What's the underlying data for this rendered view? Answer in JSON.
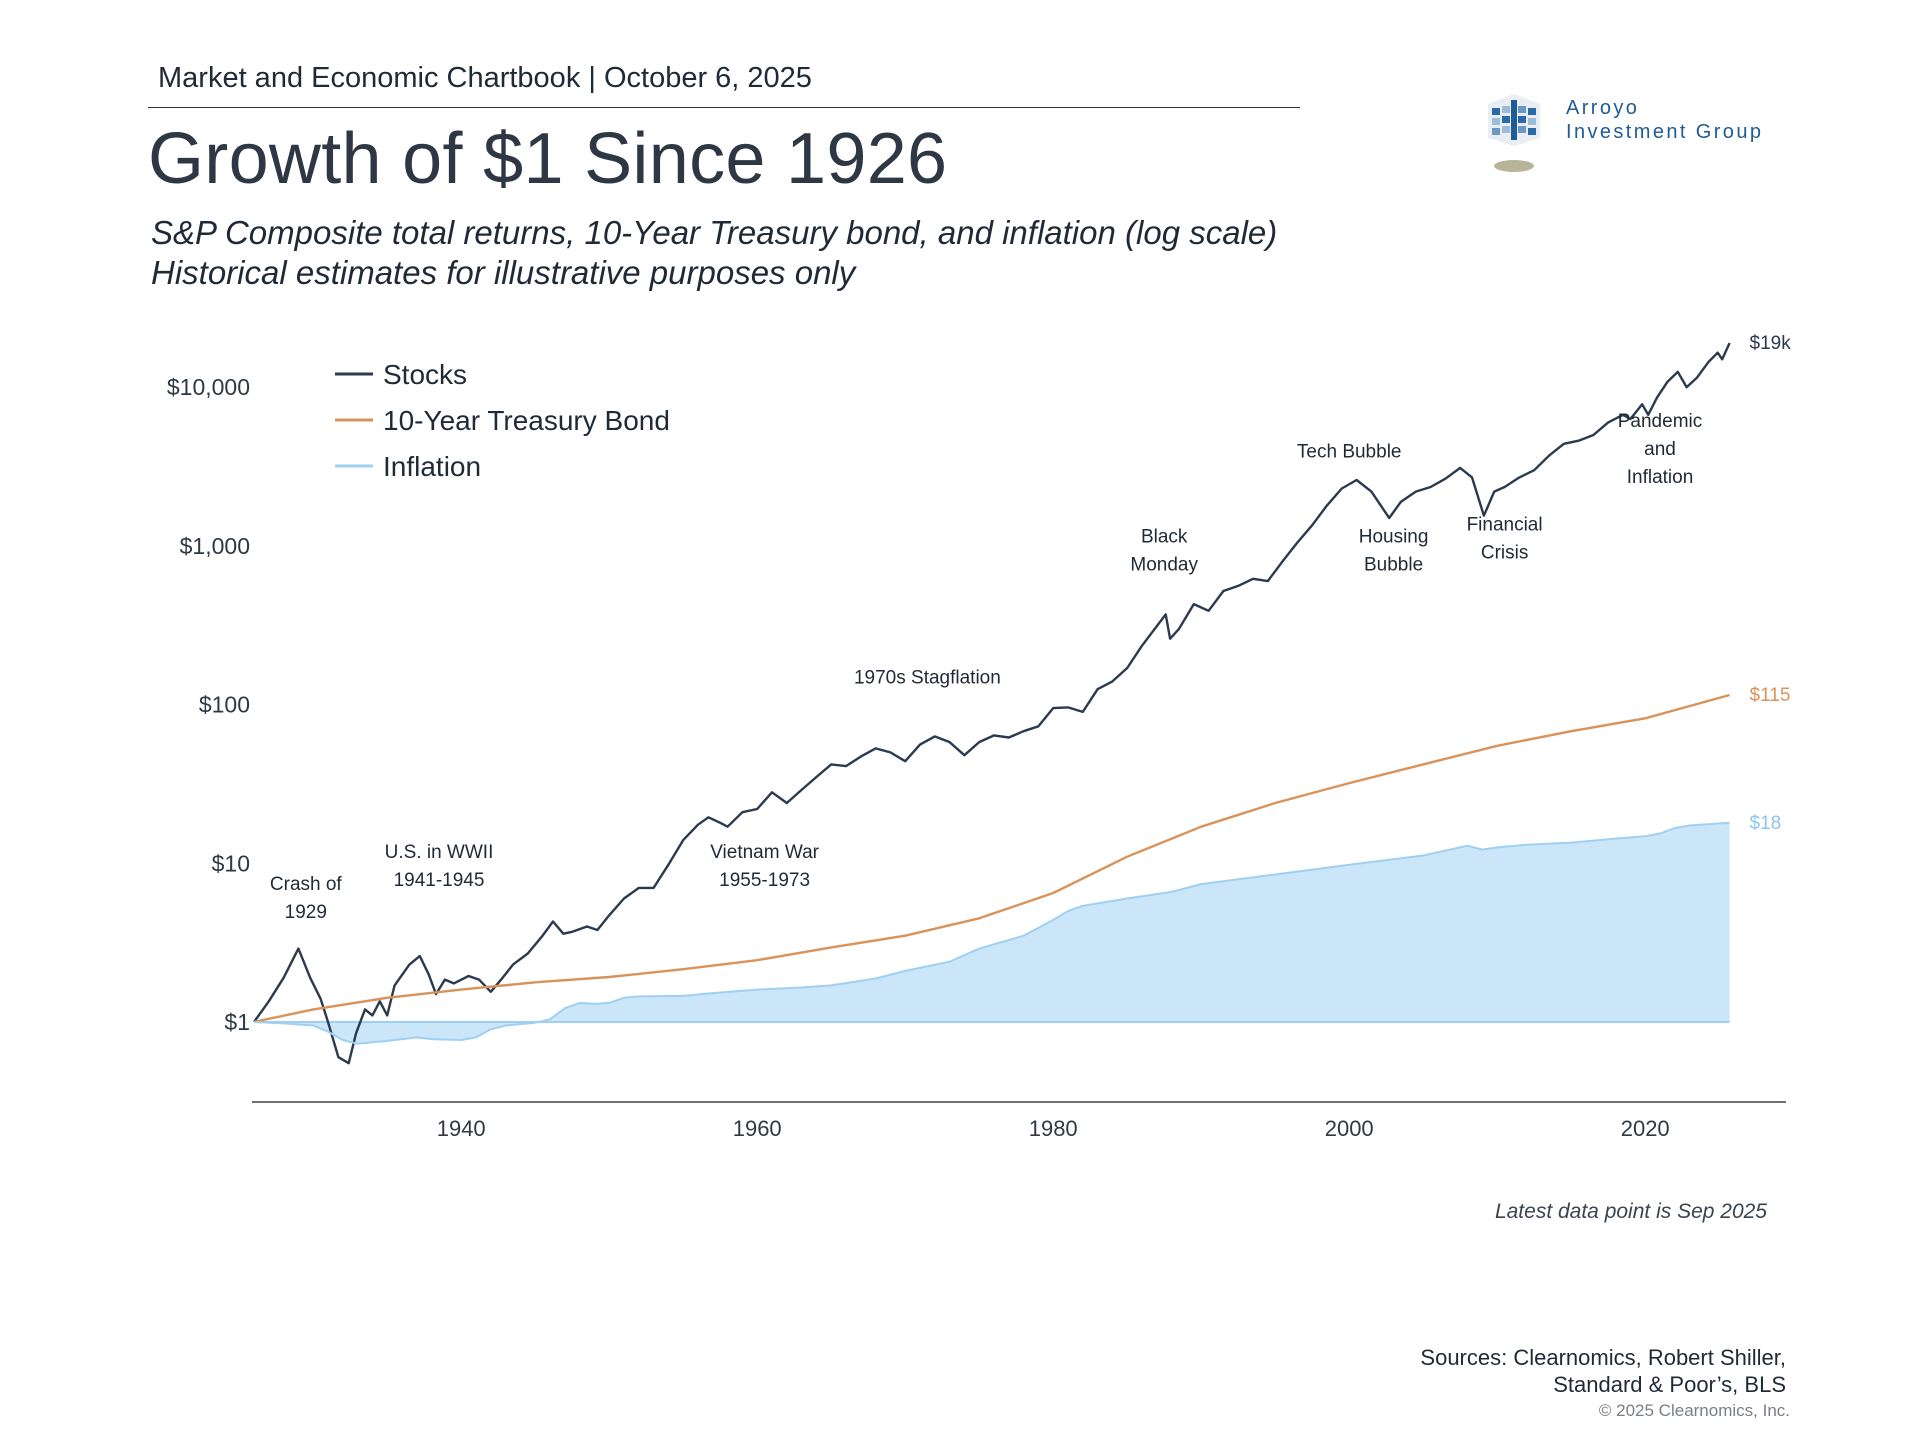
{
  "header": {
    "chartbook_line": "Market and Economic Chartbook | October 6, 2025",
    "title": "Growth of $1 Since 1926",
    "subtitle_line1": "S&P Composite total returns, 10-Year Treasury bond, and inflation (log scale)",
    "subtitle_line2": "Historical estimates for illustrative purposes only"
  },
  "logo": {
    "line1": "Arroyo",
    "line2": "Investment Group",
    "icon": "building-grid-logo-icon",
    "color": "#1f5b96"
  },
  "footer": {
    "latest_note": "Latest data point is Sep 2025",
    "sources_line1": "Sources: Clearnomics, Robert Shiller,",
    "sources_line2": "Standard & Poor’s, BLS",
    "copyright": "© 2025 Clearnomics, Inc."
  },
  "chart_data": {
    "type": "line",
    "yscale": "log",
    "xlim": [
      1926,
      2029
    ],
    "ylim": [
      0.25,
      30000
    ],
    "yticks": [
      {
        "value": 1,
        "label": "$1"
      },
      {
        "value": 10,
        "label": "$10"
      },
      {
        "value": 100,
        "label": "$100"
      },
      {
        "value": 1000,
        "label": "$1,000"
      },
      {
        "value": 10000,
        "label": "$10,000"
      }
    ],
    "xticks": [
      {
        "value": 1940,
        "label": "1940"
      },
      {
        "value": 1960,
        "label": "1960"
      },
      {
        "value": 1980,
        "label": "1980"
      },
      {
        "value": 2000,
        "label": "2000"
      },
      {
        "value": 2020,
        "label": "2020"
      }
    ],
    "grid": false,
    "legend_position": "top-left",
    "series": [
      {
        "name": "Stocks",
        "color": "#2b3a4e",
        "end_label": "$19k",
        "points": [
          [
            1926,
            1.0
          ],
          [
            1927,
            1.35
          ],
          [
            1928,
            1.9
          ],
          [
            1929,
            2.9
          ],
          [
            1929.8,
            1.9
          ],
          [
            1930.5,
            1.4
          ],
          [
            1931,
            1.0
          ],
          [
            1931.7,
            0.6
          ],
          [
            1932.4,
            0.55
          ],
          [
            1932.9,
            0.85
          ],
          [
            1933.5,
            1.2
          ],
          [
            1934,
            1.1
          ],
          [
            1934.5,
            1.35
          ],
          [
            1935,
            1.1
          ],
          [
            1935.5,
            1.7
          ],
          [
            1936.5,
            2.3
          ],
          [
            1937.2,
            2.6
          ],
          [
            1937.8,
            2.0
          ],
          [
            1938.3,
            1.5
          ],
          [
            1938.9,
            1.85
          ],
          [
            1939.5,
            1.75
          ],
          [
            1940.5,
            1.95
          ],
          [
            1941.2,
            1.85
          ],
          [
            1942,
            1.55
          ],
          [
            1942.8,
            1.9
          ],
          [
            1943.5,
            2.3
          ],
          [
            1944.5,
            2.7
          ],
          [
            1945.5,
            3.5
          ],
          [
            1946.2,
            4.3
          ],
          [
            1946.9,
            3.6
          ],
          [
            1947.5,
            3.7
          ],
          [
            1948.5,
            4.0
          ],
          [
            1949.2,
            3.8
          ],
          [
            1950,
            4.7
          ],
          [
            1951,
            6.0
          ],
          [
            1952,
            7.0
          ],
          [
            1953,
            7.0
          ],
          [
            1954,
            9.8
          ],
          [
            1955,
            14.0
          ],
          [
            1956,
            17.5
          ],
          [
            1956.7,
            19.5
          ],
          [
            1957.5,
            18.0
          ],
          [
            1958,
            17.0
          ],
          [
            1959,
            21.0
          ],
          [
            1960,
            22.0
          ],
          [
            1961,
            28.0
          ],
          [
            1962,
            24.0
          ],
          [
            1963,
            29.0
          ],
          [
            1964,
            35.0
          ],
          [
            1965,
            42.0
          ],
          [
            1966,
            41.0
          ],
          [
            1967,
            47.0
          ],
          [
            1968,
            53.0
          ],
          [
            1969,
            50.0
          ],
          [
            1970,
            44.0
          ],
          [
            1971,
            56.0
          ],
          [
            1972,
            63.0
          ],
          [
            1973,
            58.0
          ],
          [
            1974,
            48.0
          ],
          [
            1975,
            58.0
          ],
          [
            1976,
            64.0
          ],
          [
            1977,
            62.0
          ],
          [
            1978,
            68.0
          ],
          [
            1979,
            73.0
          ],
          [
            1980,
            95.0
          ],
          [
            1981,
            96.0
          ],
          [
            1982,
            90.0
          ],
          [
            1983,
            125.0
          ],
          [
            1984,
            140.0
          ],
          [
            1985,
            170.0
          ],
          [
            1986,
            235.0
          ],
          [
            1987.6,
            370.0
          ],
          [
            1987.9,
            260.0
          ],
          [
            1988.5,
            300.0
          ],
          [
            1989.5,
            430.0
          ],
          [
            1990.5,
            390.0
          ],
          [
            1991.5,
            520.0
          ],
          [
            1992.5,
            560.0
          ],
          [
            1993.5,
            620.0
          ],
          [
            1994.5,
            600.0
          ],
          [
            1995.5,
            800.0
          ],
          [
            1996.5,
            1050.0
          ],
          [
            1997.5,
            1350.0
          ],
          [
            1998.5,
            1800.0
          ],
          [
            1999.5,
            2300.0
          ],
          [
            2000.5,
            2600.0
          ],
          [
            2001.5,
            2200.0
          ],
          [
            2002.7,
            1500.0
          ],
          [
            2003.5,
            1900.0
          ],
          [
            2004.5,
            2200.0
          ],
          [
            2005.5,
            2350.0
          ],
          [
            2006.5,
            2650.0
          ],
          [
            2007.5,
            3100.0
          ],
          [
            2008.3,
            2700.0
          ],
          [
            2009.1,
            1550.0
          ],
          [
            2009.8,
            2200.0
          ],
          [
            2010.5,
            2350.0
          ],
          [
            2011.5,
            2700.0
          ],
          [
            2012.5,
            3000.0
          ],
          [
            2013.5,
            3700.0
          ],
          [
            2014.5,
            4400.0
          ],
          [
            2015.5,
            4600.0
          ],
          [
            2016.5,
            5000.0
          ],
          [
            2017.5,
            6000.0
          ],
          [
            2018.5,
            6700.0
          ],
          [
            2019,
            6300.0
          ],
          [
            2019.8,
            7800.0
          ],
          [
            2020.2,
            6700.0
          ],
          [
            2020.8,
            8600.0
          ],
          [
            2021.5,
            10800.0
          ],
          [
            2022.2,
            12500.0
          ],
          [
            2022.8,
            10000.0
          ],
          [
            2023.5,
            11500.0
          ],
          [
            2024.3,
            14500.0
          ],
          [
            2024.9,
            16500.0
          ],
          [
            2025.2,
            15000.0
          ],
          [
            2025.7,
            19000.0
          ]
        ]
      },
      {
        "name": "10-Year Treasury Bond",
        "color": "#d9935a",
        "end_label": "$115",
        "points": [
          [
            1926,
            1.0
          ],
          [
            1930,
            1.2
          ],
          [
            1935,
            1.42
          ],
          [
            1940,
            1.6
          ],
          [
            1945,
            1.78
          ],
          [
            1950,
            1.92
          ],
          [
            1955,
            2.15
          ],
          [
            1960,
            2.45
          ],
          [
            1965,
            2.95
          ],
          [
            1970,
            3.5
          ],
          [
            1975,
            4.5
          ],
          [
            1980,
            6.5
          ],
          [
            1985,
            11.0
          ],
          [
            1990,
            17.0
          ],
          [
            1995,
            24.0
          ],
          [
            2000,
            32.0
          ],
          [
            2005,
            42.0
          ],
          [
            2010,
            55.0
          ],
          [
            2015,
            68.0
          ],
          [
            2020,
            82.0
          ],
          [
            2025.7,
            115.0
          ]
        ]
      },
      {
        "name": "Inflation",
        "color": "#9fd0f2",
        "fill": "#cce6f9",
        "end_label": "$18",
        "points": [
          [
            1926,
            1.0
          ],
          [
            1928,
            0.98
          ],
          [
            1930,
            0.95
          ],
          [
            1931,
            0.87
          ],
          [
            1932,
            0.77
          ],
          [
            1933,
            0.73
          ],
          [
            1935,
            0.76
          ],
          [
            1937,
            0.8
          ],
          [
            1938,
            0.78
          ],
          [
            1940,
            0.77
          ],
          [
            1941,
            0.8
          ],
          [
            1942,
            0.9
          ],
          [
            1943,
            0.95
          ],
          [
            1944,
            0.97
          ],
          [
            1945,
            0.99
          ],
          [
            1946,
            1.04
          ],
          [
            1947,
            1.22
          ],
          [
            1948,
            1.32
          ],
          [
            1949,
            1.3
          ],
          [
            1950,
            1.32
          ],
          [
            1951,
            1.42
          ],
          [
            1952,
            1.45
          ],
          [
            1955,
            1.46
          ],
          [
            1957,
            1.52
          ],
          [
            1960,
            1.6
          ],
          [
            1963,
            1.65
          ],
          [
            1965,
            1.7
          ],
          [
            1968,
            1.88
          ],
          [
            1970,
            2.1
          ],
          [
            1973,
            2.4
          ],
          [
            1975,
            2.9
          ],
          [
            1978,
            3.5
          ],
          [
            1980,
            4.4
          ],
          [
            1981,
            5.0
          ],
          [
            1982,
            5.4
          ],
          [
            1985,
            6.0
          ],
          [
            1988,
            6.6
          ],
          [
            1990,
            7.4
          ],
          [
            1995,
            8.5
          ],
          [
            2000,
            9.8
          ],
          [
            2005,
            11.2
          ],
          [
            2008,
            12.9
          ],
          [
            2009,
            12.2
          ],
          [
            2010,
            12.6
          ],
          [
            2012,
            13.1
          ],
          [
            2015,
            13.5
          ],
          [
            2018,
            14.3
          ],
          [
            2020,
            14.8
          ],
          [
            2021,
            15.4
          ],
          [
            2022,
            16.7
          ],
          [
            2023,
            17.3
          ],
          [
            2025.7,
            18.0
          ]
        ]
      }
    ],
    "annotations": [
      {
        "x": 1929.5,
        "y": 6.8,
        "lines": [
          "Crash of",
          "1929"
        ]
      },
      {
        "x": 1938.5,
        "y": 10.8,
        "lines": [
          "U.S. in WWII",
          "1941-1945"
        ]
      },
      {
        "x": 1960.5,
        "y": 10.8,
        "lines": [
          "Vietnam War",
          "1955-1973"
        ]
      },
      {
        "x": 1971.5,
        "y": 136,
        "lines": [
          "1970s Stagflation"
        ]
      },
      {
        "x": 1987.5,
        "y": 1050,
        "lines": [
          "Black",
          "Monday"
        ]
      },
      {
        "x": 2000,
        "y": 3600,
        "lines": [
          "Tech Bubble"
        ]
      },
      {
        "x": 2003,
        "y": 1050,
        "lines": [
          "Housing",
          "Bubble"
        ]
      },
      {
        "x": 2010.5,
        "y": 1250,
        "lines": [
          "Financial",
          "Crisis"
        ]
      },
      {
        "x": 2021,
        "y": 5600,
        "lines": [
          "Pandemic",
          "and",
          "Inflation"
        ]
      }
    ]
  }
}
